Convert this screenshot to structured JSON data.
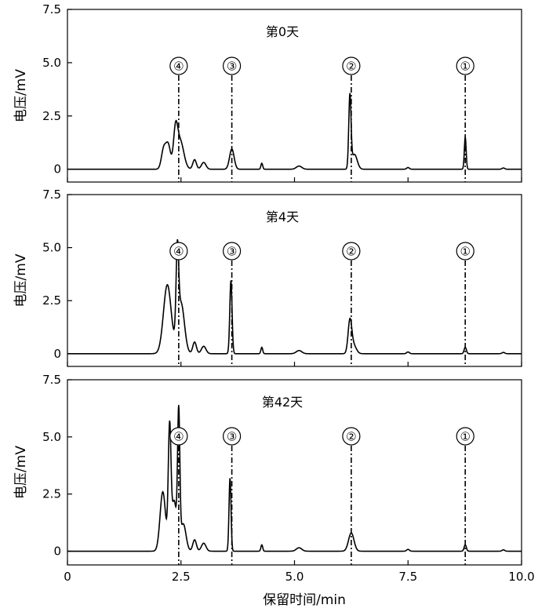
{
  "chart_data": {
    "type": "line",
    "xlabel": "保留时间/min",
    "ylabel": "电压/mV",
    "xlim": [
      0,
      10
    ],
    "ylim": [
      -0.6,
      7.5
    ],
    "xticks": [
      "0",
      "2.5",
      "5.0",
      "7.5",
      "10.0"
    ],
    "yticks": [
      "0",
      "2.5",
      "5.0",
      "7.5"
    ],
    "grid": false,
    "panels": [
      {
        "title": "第0天",
        "baseline": 0,
        "peaks": [
          {
            "t": 2.12,
            "h": 0.95,
            "w": 0.05
          },
          {
            "t": 2.22,
            "h": 1.1,
            "w": 0.05
          },
          {
            "t": 2.38,
            "h": 1.6,
            "w": 0.045
          },
          {
            "t": 2.48,
            "h": 1.35,
            "w": 0.08
          },
          {
            "t": 2.8,
            "h": 0.45,
            "w": 0.04
          },
          {
            "t": 3.0,
            "h": 0.32,
            "w": 0.05
          },
          {
            "t": 3.62,
            "h": 0.95,
            "w": 0.05
          },
          {
            "t": 4.28,
            "h": 0.28,
            "w": 0.02
          },
          {
            "t": 5.1,
            "h": 0.15,
            "w": 0.06
          },
          {
            "t": 6.22,
            "h": 3.4,
            "w": 0.025
          },
          {
            "t": 6.32,
            "h": 0.7,
            "w": 0.06
          },
          {
            "t": 7.5,
            "h": 0.08,
            "w": 0.03
          },
          {
            "t": 8.76,
            "h": 1.5,
            "w": 0.02
          },
          {
            "t": 9.6,
            "h": 0.06,
            "w": 0.03
          }
        ],
        "markers": [
          {
            "label": "④",
            "x": 2.45
          },
          {
            "label": "③",
            "x": 3.62
          },
          {
            "label": "②",
            "x": 6.25
          },
          {
            "label": "①",
            "x": 8.76
          }
        ]
      },
      {
        "title": "第4天",
        "baseline": 0,
        "peaks": [
          {
            "t": 2.2,
            "h": 3.25,
            "w": 0.085
          },
          {
            "t": 2.42,
            "h": 3.9,
            "w": 0.028
          },
          {
            "t": 2.5,
            "h": 2.4,
            "w": 0.075
          },
          {
            "t": 2.8,
            "h": 0.55,
            "w": 0.04
          },
          {
            "t": 3.0,
            "h": 0.35,
            "w": 0.05
          },
          {
            "t": 3.6,
            "h": 3.45,
            "w": 0.025
          },
          {
            "t": 4.28,
            "h": 0.3,
            "w": 0.02
          },
          {
            "t": 5.1,
            "h": 0.15,
            "w": 0.06
          },
          {
            "t": 6.22,
            "h": 1.5,
            "w": 0.04
          },
          {
            "t": 6.3,
            "h": 0.4,
            "w": 0.06
          },
          {
            "t": 7.5,
            "h": 0.08,
            "w": 0.03
          },
          {
            "t": 8.76,
            "h": 0.3,
            "w": 0.025
          },
          {
            "t": 9.6,
            "h": 0.06,
            "w": 0.03
          }
        ],
        "markers": [
          {
            "label": "④",
            "x": 2.45
          },
          {
            "label": "③",
            "x": 3.62
          },
          {
            "label": "②",
            "x": 6.25
          },
          {
            "label": "①",
            "x": 8.76
          }
        ]
      },
      {
        "title": "第42天",
        "baseline": 0,
        "peaks": [
          {
            "t": 2.1,
            "h": 2.6,
            "w": 0.06
          },
          {
            "t": 2.25,
            "h": 5.3,
            "w": 0.03
          },
          {
            "t": 2.35,
            "h": 2.2,
            "w": 0.05
          },
          {
            "t": 2.45,
            "h": 5.8,
            "w": 0.025
          },
          {
            "t": 2.55,
            "h": 1.2,
            "w": 0.06
          },
          {
            "t": 2.8,
            "h": 0.5,
            "w": 0.04
          },
          {
            "t": 3.0,
            "h": 0.35,
            "w": 0.05
          },
          {
            "t": 3.58,
            "h": 3.2,
            "w": 0.022
          },
          {
            "t": 4.28,
            "h": 0.28,
            "w": 0.02
          },
          {
            "t": 5.1,
            "h": 0.15,
            "w": 0.06
          },
          {
            "t": 6.25,
            "h": 0.8,
            "w": 0.06
          },
          {
            "t": 7.5,
            "h": 0.08,
            "w": 0.03
          },
          {
            "t": 8.76,
            "h": 0.28,
            "w": 0.025
          },
          {
            "t": 9.6,
            "h": 0.06,
            "w": 0.03
          }
        ],
        "markers": [
          {
            "label": "④",
            "x": 2.45
          },
          {
            "label": "③",
            "x": 3.62
          },
          {
            "label": "②",
            "x": 6.25
          },
          {
            "label": "①",
            "x": 8.76
          }
        ]
      }
    ]
  }
}
